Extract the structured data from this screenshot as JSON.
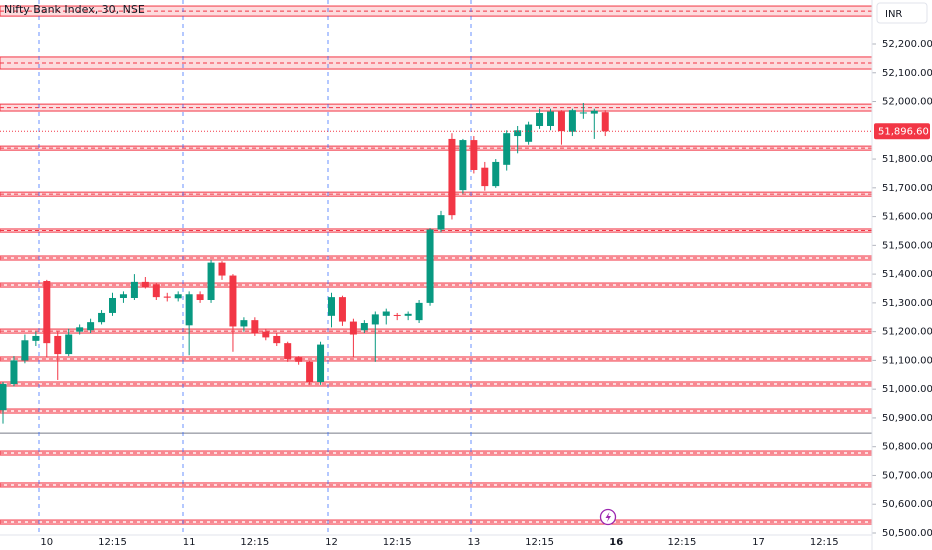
{
  "chart_data": {
    "type": "candlestick",
    "title": "Nifty Bank Index, 30, NSE",
    "currency": "INR",
    "up_color": "#089981",
    "down_color": "#f23645",
    "zone_color": "#f23645",
    "categories": [
      null,
      null,
      null,
      null,
      "10",
      null,
      null,
      null,
      null,
      null,
      "12:15",
      null,
      null,
      null,
      null,
      null,
      null,
      "11",
      null,
      null,
      null,
      null,
      null,
      "12:15",
      null,
      null,
      null,
      null,
      null,
      null,
      "12",
      null,
      null,
      null,
      null,
      null,
      "12:15",
      null,
      null,
      null,
      null,
      null,
      null,
      "13",
      null,
      null,
      null,
      null,
      null,
      "12:15",
      null,
      null,
      null,
      null,
      null,
      null,
      "16",
      null,
      null,
      null,
      null,
      null,
      "12:15",
      null,
      null,
      null,
      null,
      null,
      null,
      "17",
      null,
      null,
      null,
      null,
      null,
      "12:15",
      null,
      null,
      null,
      null
    ],
    "open": [
      50927,
      51018,
      51100,
      51168,
      51376,
      51185,
      51122,
      51200,
      51205,
      51233,
      51265,
      51317,
      51317,
      51373,
      51365,
      51322,
      51316,
      51222,
      51330,
      51310,
      51440,
      51395,
      51218,
      51240,
      51200,
      51185,
      51160,
      51110,
      51095,
      51025,
      51255,
      51320,
      51235,
      51205,
      51225,
      51255,
      51258,
      51255,
      51240,
      51300,
      51555,
      51870,
      51692,
      51866,
      51770,
      51706,
      51780,
      51880,
      51860,
      51915,
      51915,
      51965,
      51895,
      51960,
      51958,
      51963,
      null,
      null,
      null,
      null,
      null,
      null,
      null,
      null,
      null,
      null,
      null,
      null,
      null,
      null,
      null,
      null,
      null,
      null,
      null,
      null,
      null,
      null,
      null,
      null
    ],
    "high": [
      51025,
      51115,
      51190,
      51200,
      51380,
      51200,
      51210,
      51225,
      51245,
      51275,
      51335,
      51340,
      51400,
      51390,
      51370,
      51335,
      51340,
      51340,
      51340,
      51450,
      51445,
      51400,
      51250,
      51250,
      51210,
      51195,
      51165,
      51115,
      51100,
      51165,
      51335,
      51325,
      51245,
      51240,
      51270,
      51280,
      51265,
      51270,
      51310,
      51560,
      51620,
      51890,
      51870,
      51880,
      51790,
      51800,
      51900,
      51915,
      51930,
      51975,
      51975,
      51970,
      51975,
      51995,
      51975,
      51970,
      null,
      null,
      null,
      null,
      null,
      null,
      null,
      null,
      null,
      null,
      null,
      null,
      null,
      null,
      null,
      null,
      null,
      null,
      null,
      null,
      null,
      null,
      null,
      null
    ],
    "low": [
      50880,
      51010,
      51090,
      51150,
      51110,
      51032,
      51115,
      51190,
      51195,
      51225,
      51255,
      51300,
      51310,
      51350,
      51310,
      51305,
      51305,
      51118,
      51300,
      51300,
      51380,
      51130,
      51200,
      51185,
      51170,
      51150,
      51095,
      51085,
      51015,
      51015,
      51215,
      51220,
      51110,
      51195,
      51095,
      51225,
      51240,
      51240,
      51230,
      51290,
      51545,
      51590,
      51680,
      51750,
      51690,
      51700,
      51760,
      51820,
      51850,
      51905,
      51900,
      51850,
      51880,
      51940,
      51870,
      51880,
      null,
      null,
      null,
      null,
      null,
      null,
      null,
      null,
      null,
      null,
      null,
      null,
      null,
      null,
      null,
      null,
      null,
      null,
      null,
      null,
      null,
      null,
      null,
      null
    ],
    "close": [
      51018,
      51100,
      51170,
      51185,
      51160,
      51122,
      51190,
      51215,
      51233,
      51265,
      51317,
      51330,
      51373,
      51355,
      51320,
      51318,
      51330,
      51330,
      51310,
      51440,
      51395,
      51218,
      51240,
      51195,
      51180,
      51160,
      51105,
      51095,
      51025,
      51155,
      51320,
      51235,
      51190,
      51230,
      51260,
      51270,
      51255,
      51262,
      51300,
      51555,
      51605,
      51605,
      51866,
      51762,
      51706,
      51790,
      51890,
      51900,
      51920,
      51960,
      51965,
      51897,
      51970,
      51962,
      51968,
      51896.6,
      null,
      null,
      null,
      null,
      null,
      null,
      null,
      null,
      null,
      null,
      null,
      null,
      null,
      null,
      null,
      null,
      null,
      null,
      null,
      null,
      null,
      null,
      null,
      null
    ],
    "last_price": {
      "value": 51896.6,
      "label": "51,896.60"
    },
    "ylim": [
      50493,
      52353
    ],
    "yticks": [
      {
        "value": 52200,
        "label": "52,200.00"
      },
      {
        "value": 52100,
        "label": "52,100.00"
      },
      {
        "value": 52000,
        "label": "52,000.00"
      },
      {
        "value": 51800,
        "label": "51,800.00"
      },
      {
        "value": 51700,
        "label": "51,700.00"
      },
      {
        "value": 51600,
        "label": "51,600.00"
      },
      {
        "value": 51500,
        "label": "51,500.00"
      },
      {
        "value": 51400,
        "label": "51,400.00"
      },
      {
        "value": 51300,
        "label": "51,300.00"
      },
      {
        "value": 51200,
        "label": "51,200.00"
      },
      {
        "value": 51100,
        "label": "51,100.00"
      },
      {
        "value": 51000,
        "label": "51,000.00"
      },
      {
        "value": 50900,
        "label": "50,900.00"
      },
      {
        "value": 50800,
        "label": "50,800.00"
      },
      {
        "value": 50700,
        "label": "50,700.00"
      },
      {
        "value": 50600,
        "label": "50,600.00"
      },
      {
        "value": 50500,
        "label": "50,500.00"
      }
    ],
    "zones": [
      {
        "top": 52332,
        "bottom": 52297
      },
      {
        "top": 52155,
        "bottom": 52113
      },
      {
        "top": 51991,
        "bottom": 51967
      },
      {
        "top": 51845,
        "bottom": 51831
      },
      {
        "top": 51685,
        "bottom": 51671
      },
      {
        "top": 51557,
        "bottom": 51546
      },
      {
        "top": 51463,
        "bottom": 51449
      },
      {
        "top": 51369,
        "bottom": 51355
      },
      {
        "top": 51209,
        "bottom": 51195
      },
      {
        "top": 51112,
        "bottom": 51098
      },
      {
        "top": 51025,
        "bottom": 51011
      },
      {
        "top": 50931,
        "bottom": 50917
      },
      {
        "top": 50785,
        "bottom": 50771
      },
      {
        "top": 50674,
        "bottom": 50660
      },
      {
        "top": 50545,
        "bottom": 50531
      }
    ],
    "lines": [
      50847
    ]
  }
}
